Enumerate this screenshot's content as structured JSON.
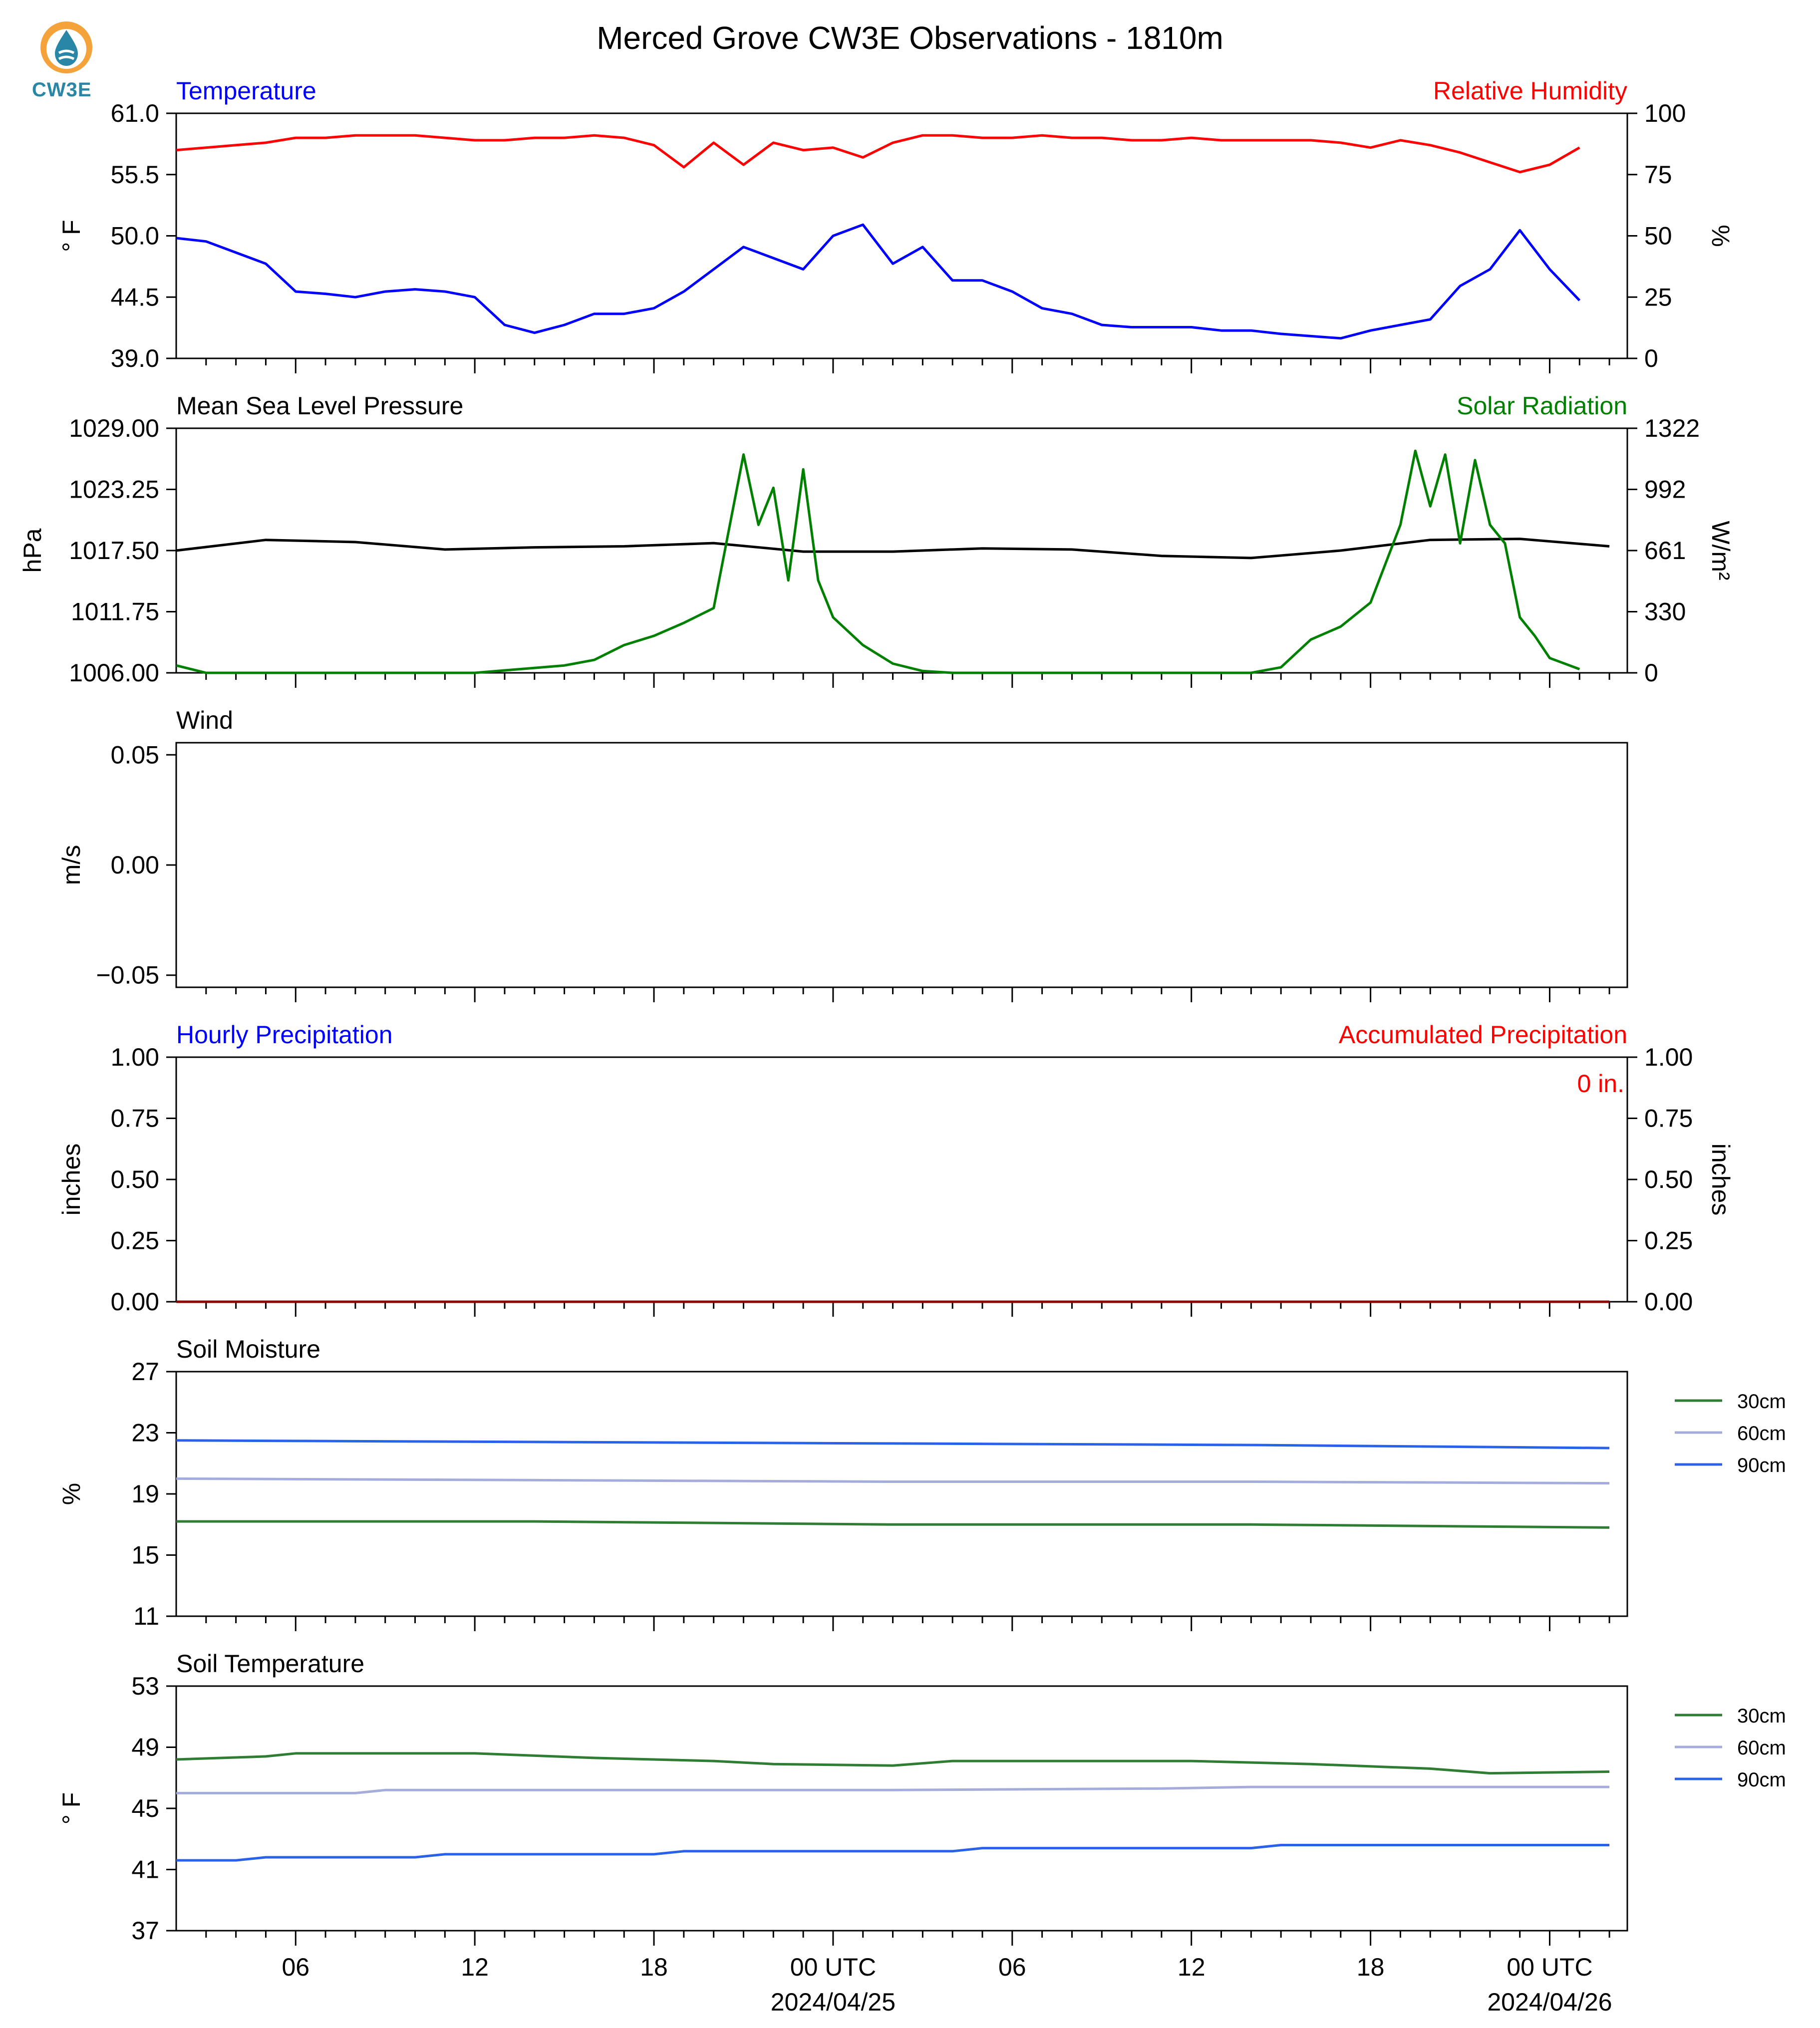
{
  "title": "Merced Grove CW3E Observations - 1810m",
  "logo": {
    "text": "CW3E",
    "icon": "water-drop-logo-icon"
  },
  "x_axis": {
    "tick_labels": [
      "06",
      "12",
      "18",
      "00 UTC",
      "06",
      "12",
      "18",
      "00 UTC"
    ],
    "date_labels": [
      "2024/04/25",
      "2024/04/26"
    ]
  },
  "panels": {
    "temp": {
      "title_left": "Temperature",
      "title_right": "Relative Humidity",
      "ylabel_left": "° F",
      "ylabel_right": "%",
      "yticks_left": [
        "39.0",
        "44.5",
        "50.0",
        "55.5",
        "61.0"
      ],
      "yticks_right": [
        "0",
        "25",
        "50",
        "75",
        "100"
      ]
    },
    "press": {
      "title_left": "Mean Sea Level Pressure",
      "title_right": "Solar Radiation",
      "ylabel_left": "hPa",
      "ylabel_right": "W/m²",
      "yticks_left": [
        "1006.00",
        "1011.75",
        "1017.50",
        "1023.25",
        "1029.00"
      ],
      "yticks_right": [
        "0",
        "330",
        "661",
        "992",
        "1322"
      ]
    },
    "wind": {
      "title_left": "Wind",
      "ylabel_left": "m/s",
      "yticks_left": [
        "−0.05",
        "0.00",
        "0.05"
      ]
    },
    "precip": {
      "title_left": "Hourly Precipitation",
      "title_right": "Accumulated Precipitation",
      "ylabel_left": "inches",
      "ylabel_right": "inches",
      "yticks_left": [
        "0.00",
        "0.25",
        "0.50",
        "0.75",
        "1.00"
      ],
      "yticks_right": [
        "0.00",
        "0.25",
        "0.50",
        "0.75",
        "1.00"
      ],
      "annotation": "0 in."
    },
    "soilm": {
      "title_left": "Soil Moisture",
      "ylabel_left": "%",
      "yticks_left": [
        "11",
        "15",
        "19",
        "23",
        "27"
      ],
      "legend": [
        "30cm",
        "60cm",
        "90cm"
      ]
    },
    "soilt": {
      "title_left": "Soil Temperature",
      "ylabel_left": "° F",
      "yticks_left": [
        "37",
        "41",
        "45",
        "49",
        "53"
      ],
      "legend": [
        "30cm",
        "60cm",
        "90cm"
      ]
    }
  },
  "colors": {
    "temperature": "#0000ff",
    "humidity": "#ff0000",
    "pressure": "#000000",
    "solar": "#008000",
    "soil_30cm": "#2e7d32",
    "soil_60cm": "#a3acdb",
    "soil_90cm": "#2962e8"
  },
  "chart_data": [
    {
      "type": "line",
      "title": "Temperature / Relative Humidity",
      "x_unit": "hours since 2024-04-24 02 UTC",
      "ylim": [
        39.0,
        61.0
      ],
      "ylim_right": [
        0,
        100
      ],
      "series": [
        {
          "name": "Temperature",
          "axis": "left",
          "x": [
            0,
            1,
            2,
            3,
            4,
            5,
            6,
            7,
            8,
            9,
            10,
            11,
            12,
            13,
            14,
            15,
            16,
            17,
            18,
            19,
            20,
            21,
            22,
            23,
            24,
            25,
            26,
            27,
            28,
            29,
            30,
            31,
            32,
            33,
            34,
            35,
            36,
            37,
            38,
            39,
            40,
            41,
            42,
            43,
            44,
            45,
            46,
            47
          ],
          "y": [
            49.8,
            49.5,
            48.5,
            47.5,
            45,
            44.8,
            44.5,
            45,
            45.2,
            45,
            44.5,
            42,
            41.3,
            42,
            43,
            43,
            43.5,
            45,
            47,
            49,
            48,
            47,
            50,
            51,
            47.5,
            49,
            46,
            46,
            45,
            43.5,
            43,
            42,
            41.8,
            41.8,
            41.8,
            41.5,
            41.5,
            41.2,
            41,
            40.8,
            41.5,
            42,
            42.5,
            45.5,
            47,
            50.5,
            47,
            44.2
          ]
        },
        {
          "name": "Relative Humidity",
          "axis": "right",
          "x": [
            0,
            1,
            2,
            3,
            4,
            5,
            6,
            7,
            8,
            9,
            10,
            11,
            12,
            13,
            14,
            15,
            16,
            17,
            18,
            19,
            20,
            21,
            22,
            23,
            24,
            25,
            26,
            27,
            28,
            29,
            30,
            31,
            32,
            33,
            34,
            35,
            36,
            37,
            38,
            39,
            40,
            41,
            42,
            43,
            44,
            45,
            46,
            47
          ],
          "y": [
            85,
            86,
            87,
            88,
            90,
            90,
            91,
            91,
            91,
            90,
            89,
            89,
            90,
            90,
            91,
            90,
            87,
            78,
            88,
            79,
            88,
            85,
            86,
            82,
            88,
            91,
            91,
            90,
            90,
            91,
            90,
            90,
            89,
            89,
            90,
            89,
            89,
            89,
            89,
            88,
            86,
            89,
            87,
            84,
            80,
            76,
            79,
            86
          ]
        }
      ]
    },
    {
      "type": "line",
      "title": "Mean Sea Level Pressure / Solar Radiation",
      "ylim": [
        1006.0,
        1029.0
      ],
      "ylim_right": [
        0,
        1322
      ],
      "series": [
        {
          "name": "Mean Sea Level Pressure",
          "axis": "left",
          "x": [
            0,
            3,
            6,
            9,
            12,
            15,
            18,
            21,
            24,
            27,
            30,
            33,
            36,
            39,
            42,
            45,
            48
          ],
          "y": [
            1017.5,
            1018.5,
            1018.3,
            1017.6,
            1017.8,
            1017.9,
            1018.2,
            1017.4,
            1017.4,
            1017.7,
            1017.6,
            1017.0,
            1016.8,
            1017.5,
            1018.5,
            1018.6,
            1017.9
          ]
        },
        {
          "name": "Solar Radiation",
          "axis": "right",
          "x": [
            0,
            1,
            2,
            10,
            13,
            14,
            15,
            16,
            17,
            18,
            19,
            19.5,
            20,
            20.5,
            21,
            21.5,
            22,
            23,
            24,
            25,
            26,
            36,
            37,
            38,
            39,
            40,
            41,
            41.5,
            42,
            42.5,
            43,
            43.5,
            44,
            44.5,
            45,
            45.5,
            46,
            47
          ],
          "y": [
            40,
            0,
            0,
            0,
            40,
            70,
            150,
            200,
            270,
            350,
            1180,
            800,
            1000,
            500,
            1100,
            500,
            300,
            150,
            50,
            10,
            0,
            0,
            30,
            180,
            250,
            380,
            800,
            1200,
            900,
            1180,
            700,
            1150,
            800,
            700,
            300,
            200,
            80,
            20
          ]
        }
      ]
    },
    {
      "type": "line",
      "title": "Wind",
      "ylim": [
        -0.05,
        0.05
      ],
      "series": []
    },
    {
      "type": "line",
      "title": "Hourly Precipitation / Accumulated Precipitation",
      "ylim": [
        0.0,
        1.0
      ],
      "ylim_right": [
        0.0,
        1.0
      ],
      "series": [
        {
          "name": "Hourly Precipitation",
          "axis": "left",
          "x": [
            0,
            48
          ],
          "y": [
            0,
            0
          ]
        },
        {
          "name": "Accumulated Precipitation",
          "axis": "right",
          "x": [
            0,
            48
          ],
          "y": [
            0,
            0
          ]
        }
      ]
    },
    {
      "type": "line",
      "title": "Soil Moisture",
      "ylim": [
        11,
        27
      ],
      "series": [
        {
          "name": "30cm",
          "x": [
            0,
            12,
            24,
            36,
            48
          ],
          "y": [
            17.2,
            17.2,
            17.0,
            17.0,
            16.8
          ]
        },
        {
          "name": "60cm",
          "x": [
            0,
            12,
            24,
            36,
            48
          ],
          "y": [
            20.0,
            19.9,
            19.8,
            19.8,
            19.7
          ]
        },
        {
          "name": "90cm",
          "x": [
            0,
            12,
            24,
            36,
            48
          ],
          "y": [
            22.5,
            22.4,
            22.3,
            22.2,
            22.0
          ]
        }
      ]
    },
    {
      "type": "line",
      "title": "Soil Temperature",
      "ylim": [
        37,
        53
      ],
      "series": [
        {
          "name": "30cm",
          "x": [
            0,
            3,
            4,
            10,
            14,
            18,
            20,
            24,
            26,
            34,
            38,
            42,
            44,
            48
          ],
          "y": [
            48.2,
            48.4,
            48.6,
            48.6,
            48.3,
            48.1,
            47.9,
            47.8,
            48.1,
            48.1,
            47.9,
            47.6,
            47.3,
            47.4
          ]
        },
        {
          "name": "60cm",
          "x": [
            0,
            6,
            7,
            12,
            24,
            33,
            36,
            48
          ],
          "y": [
            46.0,
            46.0,
            46.2,
            46.2,
            46.2,
            46.3,
            46.4,
            46.4
          ]
        },
        {
          "name": "90cm",
          "x": [
            0,
            2,
            3,
            8,
            9,
            16,
            17,
            26,
            27,
            36,
            37,
            48
          ],
          "y": [
            41.6,
            41.6,
            41.8,
            41.8,
            42.0,
            42.0,
            42.2,
            42.2,
            42.4,
            42.4,
            42.6,
            42.6
          ]
        }
      ]
    }
  ]
}
